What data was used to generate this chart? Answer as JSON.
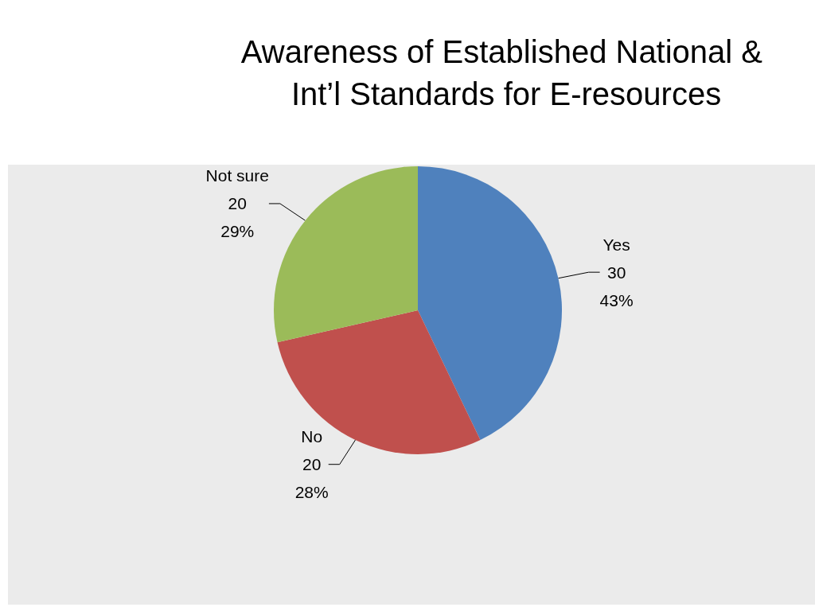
{
  "chart_data": {
    "type": "pie",
    "title": "Awareness of Established National & Int’l Standards for E-resources",
    "categories": [
      "Yes",
      "No",
      "Not sure"
    ],
    "values": [
      30,
      20,
      20
    ],
    "colors": [
      "#4f81bd",
      "#c0504d",
      "#9bbb59"
    ],
    "value_labels": [
      "30\n43%",
      "20\n28%",
      "20\n29%"
    ],
    "legend": false
  }
}
